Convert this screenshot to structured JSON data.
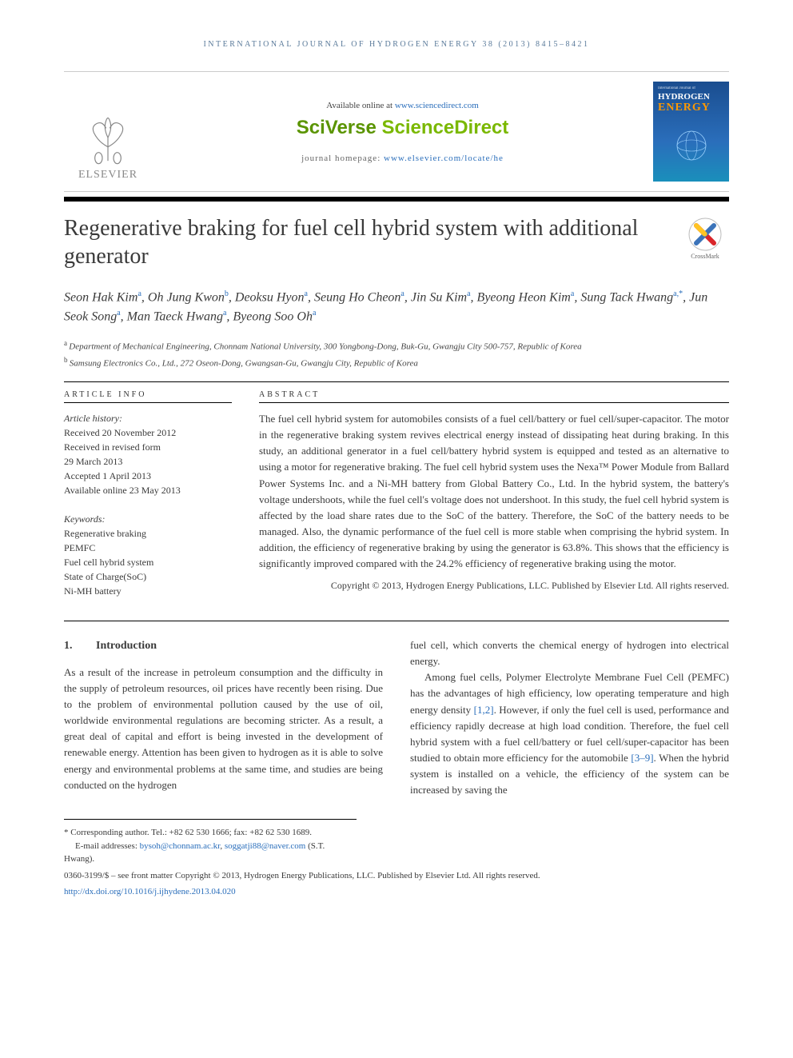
{
  "running_head": "INTERNATIONAL JOURNAL OF HYDROGEN ENERGY 38 (2013) 8415–8421",
  "masthead": {
    "available_prefix": "Available online at ",
    "available_url": "www.sciencedirect.com",
    "sd_brand_a": "SciVerse ",
    "sd_brand_b": "ScienceDirect",
    "homepage_prefix": "journal homepage: ",
    "homepage_url": "www.elsevier.com/locate/he",
    "elsevier_label": "ELSEVIER"
  },
  "cover": {
    "small": "International Journal of",
    "hydrogen": "HYDROGEN",
    "energy": "ENERGY"
  },
  "title": "Regenerative braking for fuel cell hybrid system with additional generator",
  "crossmark_label": "CrossMark",
  "authors_html": "Seon Hak Kim|a|, Oh Jung Kwon|b|, Deoksu Hyon|a|, Seung Ho Cheon|a|, Jin Su Kim|a|, Byeong Heon Kim|a|, Sung Tack Hwang|a,*|, Jun Seok Song|a|, Man Taeck Hwang|a|, Byeong Soo Oh|a|",
  "affiliations": [
    {
      "key": "a",
      "text": "Department of Mechanical Engineering, Chonnam National University, 300 Yongbong-Dong, Buk-Gu, Gwangju City 500-757, Republic of Korea"
    },
    {
      "key": "b",
      "text": "Samsung Electronics Co., Ltd., 272 Oseon-Dong, Gwangsan-Gu, Gwangju City, Republic of Korea"
    }
  ],
  "article_info": {
    "head": "ARTICLE INFO",
    "history_head": "Article history:",
    "history": [
      "Received 20 November 2012",
      "Received in revised form",
      "29 March 2013",
      "Accepted 1 April 2013",
      "Available online 23 May 2013"
    ],
    "keywords_head": "Keywords:",
    "keywords": [
      "Regenerative braking",
      "PEMFC",
      "Fuel cell hybrid system",
      "State of Charge(SoC)",
      "Ni-MH battery"
    ]
  },
  "abstract": {
    "head": "ABSTRACT",
    "text": "The fuel cell hybrid system for automobiles consists of a fuel cell/battery or fuel cell/super-capacitor. The motor in the regenerative braking system revives electrical energy instead of dissipating heat during braking. In this study, an additional generator in a fuel cell/battery hybrid system is equipped and tested as an alternative to using a motor for regenerative braking. The fuel cell hybrid system uses the Nexa™ Power Module from Ballard Power Systems Inc. and a Ni-MH battery from Global Battery Co., Ltd. In the hybrid system, the battery's voltage undershoots, while the fuel cell's voltage does not undershoot. In this study, the fuel cell hybrid system is affected by the load share rates due to the SoC of the battery. Therefore, the SoC of the battery needs to be managed. Also, the dynamic performance of the fuel cell is more stable when comprising the hybrid system. In addition, the efficiency of regenerative braking by using the generator is 63.8%. This shows that the efficiency is significantly improved compared with the 24.2% efficiency of regenerative braking using the motor.",
    "copyright": "Copyright © 2013, Hydrogen Energy Publications, LLC. Published by Elsevier Ltd. All rights reserved."
  },
  "body": {
    "section_num": "1.",
    "section_title": "Introduction",
    "left": "As a result of the increase in petroleum consumption and the difficulty in the supply of petroleum resources, oil prices have recently been rising. Due to the problem of environmental pollution caused by the use of oil, worldwide environmental regulations are becoming stricter. As a result, a great deal of capital and effort is being invested in the development of renewable energy. Attention has been given to hydrogen as it is able to solve energy and environmental problems at the same time, and studies are being conducted on the hydrogen",
    "right_p1": "fuel cell, which converts the chemical energy of hydrogen into electrical energy.",
    "right_p2_a": "Among fuel cells, Polymer Electrolyte Membrane Fuel Cell (PEMFC) has the advantages of high efficiency, low operating temperature and high energy density ",
    "right_ref1": "[1,2]",
    "right_p2_b": ". However, if only the fuel cell is used, performance and efficiency rapidly decrease at high load condition. Therefore, the fuel cell hybrid system with a fuel cell/battery or fuel cell/super-capacitor has been studied to obtain more efficiency for the automobile ",
    "right_ref2": "[3–9]",
    "right_p2_c": ". When the hybrid system is installed on a vehicle, the efficiency of the system can be increased by saving the"
  },
  "footnotes": {
    "corr": "* Corresponding author. Tel.: +82 62 530 1666; fax: +82 62 530 1689.",
    "email_label": "E-mail addresses: ",
    "email1": "bysoh@chonnam.ac.kr",
    "email_sep": ", ",
    "email2": "soggatji88@naver.com",
    "email_tail": " (S.T. Hwang)."
  },
  "bottom": {
    "issn": "0360-3199/$ – see front matter Copyright © 2013, Hydrogen Energy Publications, LLC. Published by Elsevier Ltd. All rights reserved.",
    "doi": "http://dx.doi.org/10.1016/j.ijhydene.2013.04.020"
  },
  "colors": {
    "link": "#2a6ebb",
    "sd_green": "#7ab800",
    "elsevier_orange": "#ff8200",
    "cover_grad_top": "#1a4d8f",
    "cover_grad_bot": "#1a8fbb",
    "text": "#3a3a3a"
  }
}
